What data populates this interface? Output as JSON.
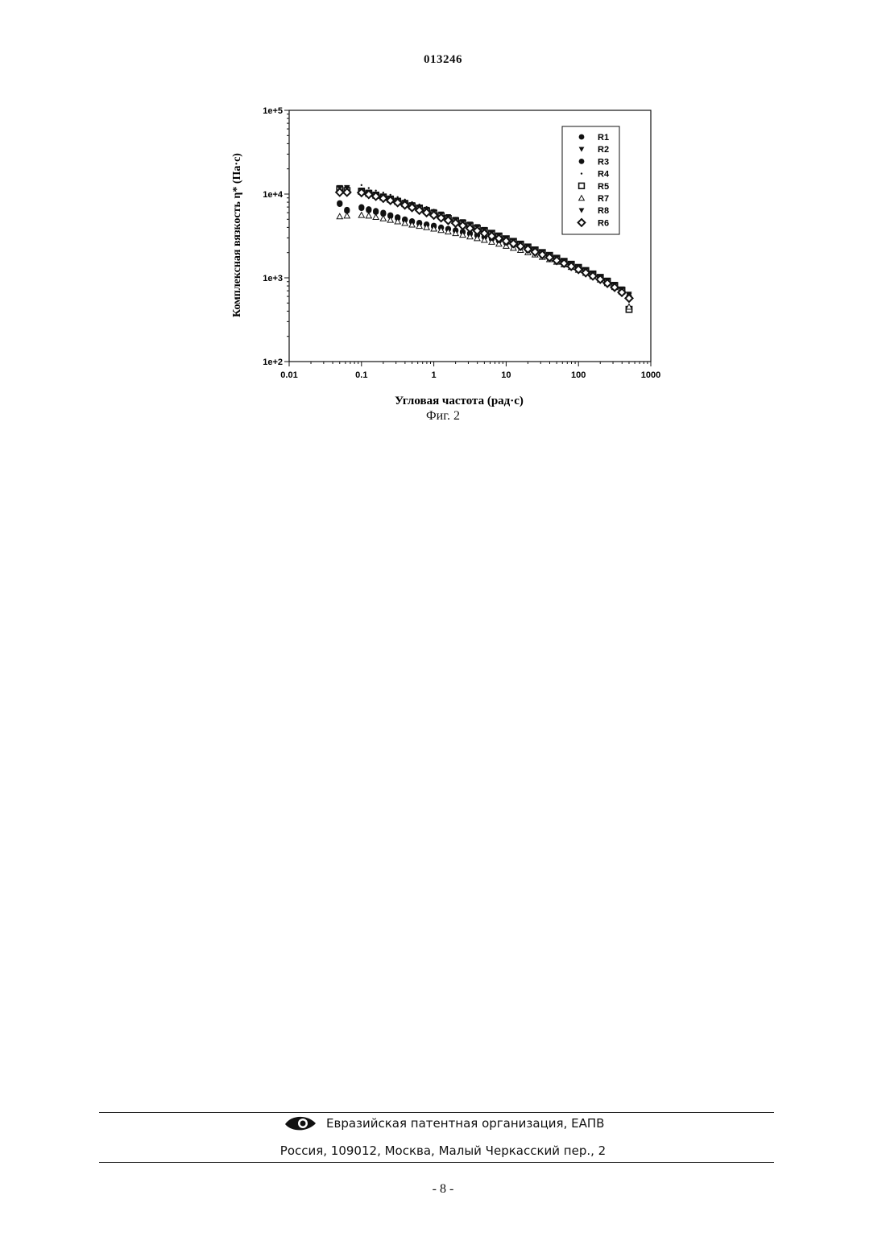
{
  "header": {
    "doc_number": "013246"
  },
  "figure": {
    "caption": "Фиг. 2"
  },
  "chart_data": {
    "type": "scatter",
    "xlabel": "Угловая частота (рад·с)",
    "ylabel": "Комплексная вязкость η* (Па·с)",
    "xscale": "log",
    "yscale": "log",
    "xlim": [
      0.01,
      1000
    ],
    "ylim": [
      100,
      100000
    ],
    "x_ticks": [
      "0.01",
      "0.1",
      "1",
      "10",
      "100",
      "1000"
    ],
    "y_ticks": [
      "1e+2",
      "1e+3",
      "1e+4",
      "1e+5"
    ],
    "grid": false,
    "legend_position": "top-right",
    "x": [
      0.05,
      0.063,
      0.1,
      0.126,
      0.158,
      0.2,
      0.251,
      0.316,
      0.398,
      0.5,
      0.631,
      0.794,
      1,
      1.26,
      1.58,
      2,
      2.51,
      3.16,
      3.98,
      5,
      6.31,
      7.94,
      10,
      12.6,
      15.8,
      20,
      25.1,
      31.6,
      39.8,
      50,
      63.1,
      79.4,
      100,
      126,
      158,
      200,
      251,
      316,
      398,
      500
    ],
    "series": [
      {
        "name": "R1",
        "marker": "circle",
        "values": [
          7800,
          6300,
          7000,
          6600,
          6300,
          6000,
          5600,
          5300,
          5000,
          4750,
          4550,
          4350,
          4200,
          4000,
          3850,
          3700,
          3550,
          3400,
          3250,
          3100,
          2950,
          2800,
          2650,
          2500,
          2350,
          2200,
          2050,
          1900,
          1800,
          1680,
          1560,
          1440,
          1330,
          1220,
          1110,
          1000,
          890,
          790,
          690,
          600
        ]
      },
      {
        "name": "R2",
        "marker": "triangle-down",
        "values": [
          12000,
          12000,
          11200,
          10600,
          10000,
          9500,
          9000,
          8500,
          8000,
          7500,
          7000,
          6600,
          6200,
          5800,
          5400,
          5000,
          4700,
          4400,
          4100,
          3800,
          3500,
          3250,
          3000,
          2800,
          2600,
          2400,
          2200,
          2050,
          1900,
          1750,
          1600,
          1480,
          1360,
          1250,
          1140,
          1040,
          940,
          840,
          740,
          640
        ]
      },
      {
        "name": "R3",
        "marker": "circle",
        "values": [
          7600,
          6500,
          6800,
          6400,
          6100,
          5800,
          5450,
          5150,
          4900,
          4650,
          4450,
          4300,
          4100,
          3950,
          3800,
          3650,
          3500,
          3350,
          3200,
          3050,
          2900,
          2750,
          2600,
          2450,
          2300,
          2150,
          2000,
          1880,
          1760,
          1640,
          1520,
          1400,
          1290,
          1180,
          1080,
          970,
          870,
          770,
          680,
          580
        ]
      },
      {
        "name": "R4",
        "marker": "dot",
        "values": [
          12200,
          12400,
          12800,
          11800,
          11000,
          10400,
          9800,
          9200,
          8600,
          8000,
          7500,
          7000,
          6500,
          6000,
          5600,
          5200,
          4850,
          4500,
          4200,
          3900,
          3600,
          3350,
          3100,
          2880,
          2660,
          2460,
          2260,
          2100,
          1940,
          1790,
          1640,
          1510,
          1380,
          1270,
          1160,
          1060,
          960,
          860,
          760,
          660
        ]
      },
      {
        "name": "R5",
        "marker": "square",
        "values": [
          11500,
          11000,
          10800,
          10200,
          9700,
          9200,
          8700,
          8200,
          7700,
          7200,
          6800,
          6300,
          5900,
          5500,
          5100,
          4800,
          4500,
          4200,
          3900,
          3650,
          3400,
          3150,
          2920,
          2720,
          2520,
          2330,
          2150,
          2000,
          1850,
          1710,
          1570,
          1450,
          1330,
          1220,
          1110,
          1010,
          910,
          810,
          710,
          420
        ]
      },
      {
        "name": "R7",
        "marker": "triangle-up",
        "values": [
          5400,
          5500,
          5600,
          5500,
          5300,
          5100,
          4900,
          4700,
          4500,
          4300,
          4150,
          4000,
          3850,
          3700,
          3550,
          3400,
          3250,
          3100,
          2960,
          2820,
          2680,
          2540,
          2400,
          2270,
          2140,
          2010,
          1890,
          1770,
          1660,
          1550,
          1440,
          1340,
          1240,
          1140,
          1040,
          950,
          860,
          770,
          680,
          450
        ]
      },
      {
        "name": "R8",
        "marker": "triangle-down",
        "values": [
          11800,
          11800,
          11000,
          10400,
          9900,
          9400,
          8900,
          8400,
          7900,
          7400,
          6900,
          6500,
          6100,
          5700,
          5300,
          4900,
          4600,
          4300,
          4000,
          3700,
          3450,
          3200,
          2960,
          2760,
          2560,
          2360,
          2180,
          2020,
          1870,
          1720,
          1580,
          1460,
          1340,
          1230,
          1120,
          1020,
          920,
          820,
          720,
          620
        ]
      },
      {
        "name": "R6",
        "marker": "diamond",
        "values": [
          10500,
          10500,
          10400,
          9900,
          9400,
          8900,
          8400,
          7900,
          7400,
          6900,
          6400,
          6000,
          5600,
          5200,
          4850,
          4500,
          4200,
          3900,
          3650,
          3400,
          3150,
          2950,
          2750,
          2560,
          2380,
          2200,
          2040,
          1890,
          1750,
          1610,
          1490,
          1370,
          1260,
          1150,
          1050,
          960,
          860,
          770,
          670,
          570
        ]
      }
    ]
  },
  "footer": {
    "org": "Евразийская патентная организация, ЕАПВ",
    "address": "Россия, 109012, Москва, Малый Черкасский пер., 2",
    "page_number": "- 8 -"
  }
}
